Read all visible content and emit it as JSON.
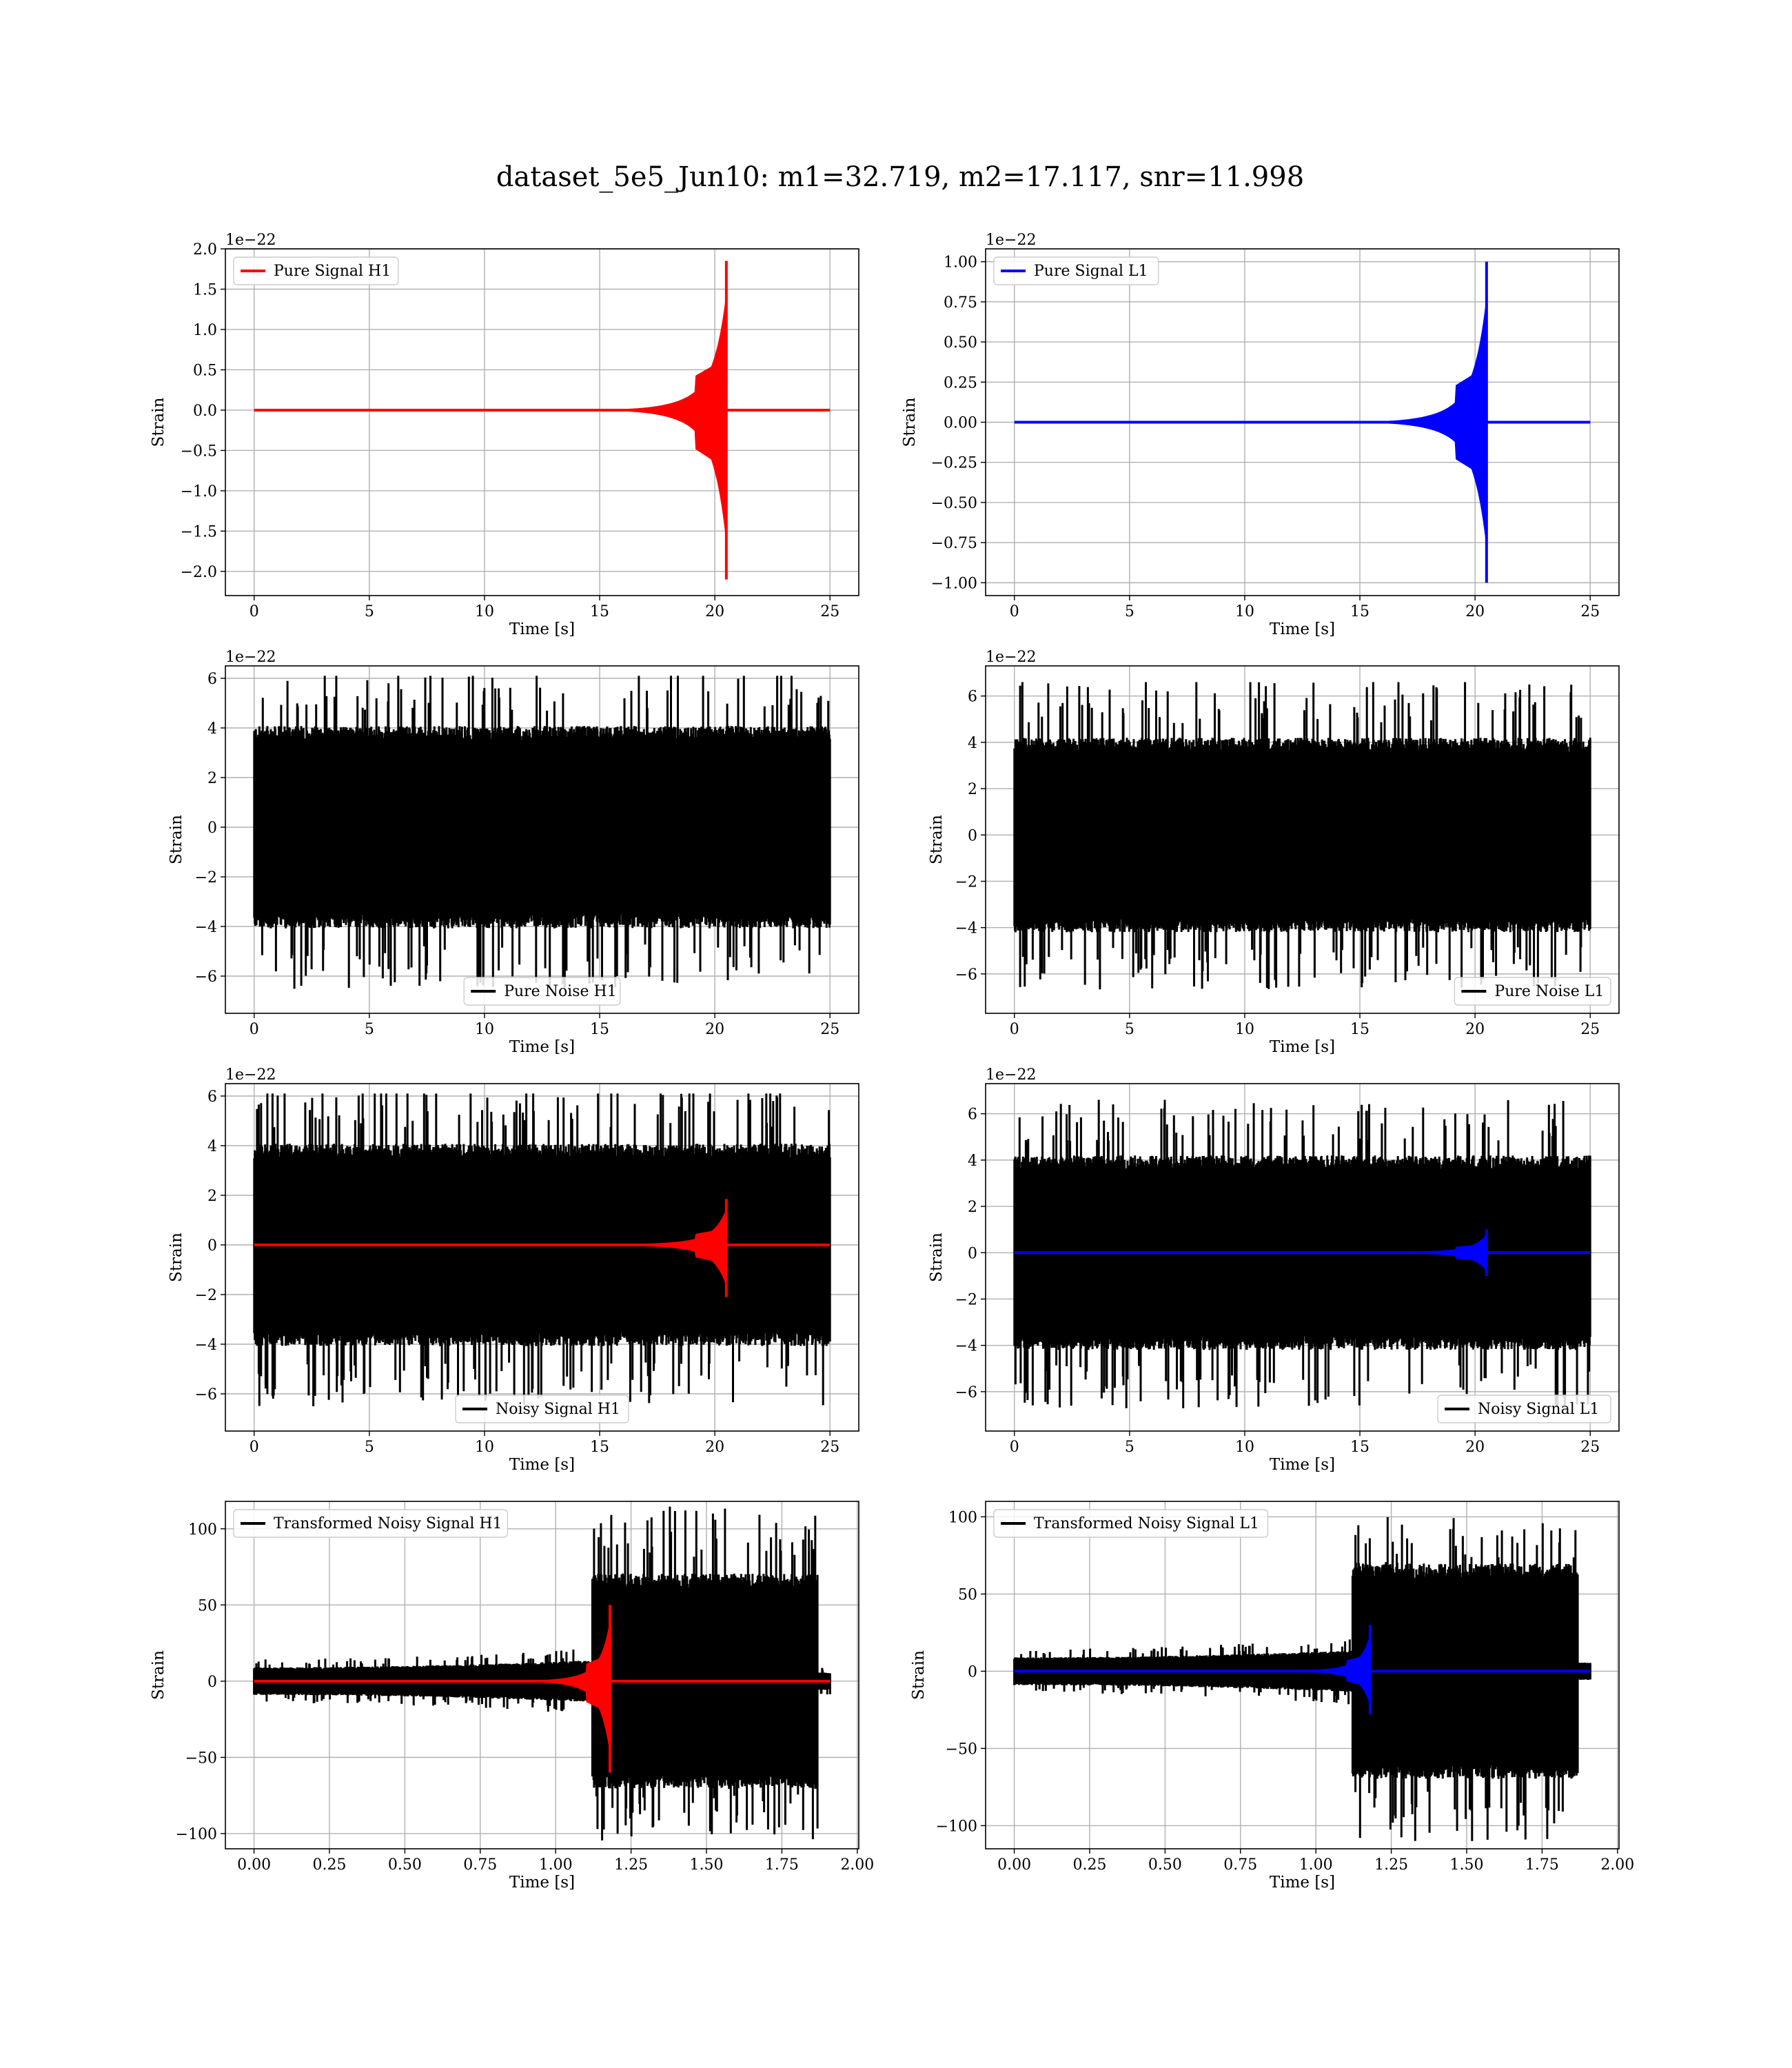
{
  "figure_title": "dataset_5e5_Jun10: m1=32.719, m2=17.117, snr=11.998",
  "colors": {
    "h1_signal": "#ff0000",
    "l1_signal": "#0000ff",
    "noise": "#000000",
    "grid": "#b0b0b0"
  },
  "chart_data": [
    {
      "id": "pure-signal-h1",
      "type": "line",
      "xlabel": "Time [s]",
      "ylabel": "Strain",
      "offset_text": "1e−22",
      "xlim": [
        -1.25,
        26.25
      ],
      "ylim": [
        -2.3,
        2.0
      ],
      "xticks": [
        0,
        5,
        10,
        15,
        20,
        25
      ],
      "xticklabels": [
        "0",
        "5",
        "10",
        "15",
        "20",
        "25"
      ],
      "yticks": [
        2.0,
        1.5,
        1.0,
        0.5,
        0.0,
        -0.5,
        -1.0,
        -1.5,
        -2.0
      ],
      "yticklabels": [
        "2.0",
        "1.5",
        "1.0",
        "0.5",
        "0.0",
        "−0.5",
        "−1.0",
        "−1.5",
        "−2.0"
      ],
      "legend_loc": "upper-left",
      "series": [
        {
          "name": "Pure Signal H1",
          "kind": "chirp",
          "color": "#ff0000",
          "x_start": 0,
          "x_end": 25,
          "merger": 20.5,
          "peak": 1.85,
          "trough": -2.1
        }
      ]
    },
    {
      "id": "pure-signal-l1",
      "type": "line",
      "xlabel": "Time [s]",
      "ylabel": "Strain",
      "offset_text": "1e−22",
      "xlim": [
        -1.25,
        26.25
      ],
      "ylim": [
        -1.08,
        1.08
      ],
      "xticks": [
        0,
        5,
        10,
        15,
        20,
        25
      ],
      "xticklabels": [
        "0",
        "5",
        "10",
        "15",
        "20",
        "25"
      ],
      "yticks": [
        1.0,
        0.75,
        0.5,
        0.25,
        0.0,
        -0.25,
        -0.5,
        -0.75,
        -1.0
      ],
      "yticklabels": [
        "1.00",
        "0.75",
        "0.50",
        "0.25",
        "0.00",
        "−0.25",
        "−0.50",
        "−0.75",
        "−1.00"
      ],
      "legend_loc": "upper-left",
      "series": [
        {
          "name": "Pure Signal L1",
          "kind": "chirp",
          "color": "#0000ff",
          "x_start": 0,
          "x_end": 25,
          "merger": 20.5,
          "peak": 1.0,
          "trough": -1.0
        }
      ]
    },
    {
      "id": "pure-noise-h1",
      "type": "line",
      "xlabel": "Time [s]",
      "ylabel": "Strain",
      "offset_text": "1e−22",
      "xlim": [
        -1.25,
        26.25
      ],
      "ylim": [
        -7.5,
        6.5
      ],
      "xticks": [
        0,
        5,
        10,
        15,
        20,
        25
      ],
      "xticklabels": [
        "0",
        "5",
        "10",
        "15",
        "20",
        "25"
      ],
      "yticks": [
        6,
        4,
        2,
        0,
        -2,
        -4,
        -6
      ],
      "yticklabels": [
        "6",
        "4",
        "2",
        "0",
        "−2",
        "−4",
        "−6"
      ],
      "legend_loc": "lower-center",
      "series": [
        {
          "name": "Pure Noise H1",
          "kind": "noise",
          "color": "#000000",
          "x_start": 0,
          "x_end": 25,
          "peak": 6.1,
          "trough": -6.8
        }
      ]
    },
    {
      "id": "pure-noise-l1",
      "type": "line",
      "xlabel": "Time [s]",
      "ylabel": "Strain",
      "offset_text": "1e−22",
      "xlim": [
        -1.25,
        26.25
      ],
      "ylim": [
        -7.7,
        7.3
      ],
      "xticks": [
        0,
        5,
        10,
        15,
        20,
        25
      ],
      "xticklabels": [
        "0",
        "5",
        "10",
        "15",
        "20",
        "25"
      ],
      "yticks": [
        6,
        4,
        2,
        0,
        -2,
        -4,
        -6
      ],
      "yticklabels": [
        "6",
        "4",
        "2",
        "0",
        "−2",
        "−4",
        "−6"
      ],
      "legend_loc": "lower-right",
      "series": [
        {
          "name": "Pure Noise L1",
          "kind": "noise",
          "color": "#000000",
          "x_start": 0,
          "x_end": 25,
          "peak": 6.6,
          "trough": -7.0
        }
      ]
    },
    {
      "id": "noisy-signal-h1",
      "type": "line",
      "xlabel": "Time [s]",
      "ylabel": "Strain",
      "offset_text": "1e−22",
      "xlim": [
        -1.25,
        26.25
      ],
      "ylim": [
        -7.5,
        6.5
      ],
      "xticks": [
        0,
        5,
        10,
        15,
        20,
        25
      ],
      "xticklabels": [
        "0",
        "5",
        "10",
        "15",
        "20",
        "25"
      ],
      "yticks": [
        6,
        4,
        2,
        0,
        -2,
        -4,
        -6
      ],
      "yticklabels": [
        "6",
        "4",
        "2",
        "0",
        "−2",
        "−4",
        "−6"
      ],
      "legend_loc": "lower-center",
      "series": [
        {
          "name": "Noisy Signal H1",
          "kind": "noise",
          "color": "#000000",
          "x_start": 0,
          "x_end": 25,
          "peak": 6.1,
          "trough": -6.8
        },
        {
          "kind": "chirp",
          "color": "#ff0000",
          "x_start": 0,
          "x_end": 25,
          "merger": 20.5,
          "peak": 1.85,
          "trough": -2.1
        }
      ]
    },
    {
      "id": "noisy-signal-l1",
      "type": "line",
      "xlabel": "Time [s]",
      "ylabel": "Strain",
      "offset_text": "1e−22",
      "xlim": [
        -1.25,
        26.25
      ],
      "ylim": [
        -7.7,
        7.3
      ],
      "xticks": [
        0,
        5,
        10,
        15,
        20,
        25
      ],
      "xticklabels": [
        "0",
        "5",
        "10",
        "15",
        "20",
        "25"
      ],
      "yticks": [
        6,
        4,
        2,
        0,
        -2,
        -4,
        -6
      ],
      "yticklabels": [
        "6",
        "4",
        "2",
        "0",
        "−2",
        "−4",
        "−6"
      ],
      "legend_loc": "lower-right",
      "series": [
        {
          "name": "Noisy Signal L1",
          "kind": "noise",
          "color": "#000000",
          "x_start": 0,
          "x_end": 25,
          "peak": 6.6,
          "trough": -7.0
        },
        {
          "kind": "chirp",
          "color": "#0000ff",
          "x_start": 0,
          "x_end": 25,
          "merger": 20.5,
          "peak": 1.0,
          "trough": -1.0
        }
      ]
    },
    {
      "id": "transformed-h1",
      "type": "line",
      "xlabel": "Time [s]",
      "ylabel": "Strain",
      "offset_text": "",
      "xlim": [
        -0.095,
        2.005
      ],
      "ylim": [
        -110,
        118
      ],
      "xticks": [
        0,
        0.25,
        0.5,
        0.75,
        1.0,
        1.25,
        1.5,
        1.75,
        2.0
      ],
      "xticklabels": [
        "0.00",
        "0.25",
        "0.50",
        "0.75",
        "1.00",
        "1.25",
        "1.50",
        "1.75",
        "2.00"
      ],
      "yticks": [
        100,
        50,
        0,
        -50,
        -100
      ],
      "yticklabels": [
        "100",
        "50",
        "0",
        "−50",
        "−100"
      ],
      "legend_loc": "upper-left",
      "series": [
        {
          "name": "Transformed Noisy Signal H1",
          "kind": "tnoise",
          "color": "#000000",
          "x_start": 0,
          "x_end": 1.91,
          "jump": 1.12,
          "drop": 1.87,
          "peak": 115,
          "trough": -105
        },
        {
          "kind": "chirp",
          "color": "#ff0000",
          "x_start": 0,
          "x_end": 1.91,
          "onset": 0.8,
          "merger": 1.18,
          "peak": 50,
          "trough": -60
        }
      ]
    },
    {
      "id": "transformed-l1",
      "type": "line",
      "xlabel": "Time [s]",
      "ylabel": "Strain",
      "offset_text": "",
      "xlim": [
        -0.095,
        2.005
      ],
      "ylim": [
        -115,
        110
      ],
      "xticks": [
        0,
        0.25,
        0.5,
        0.75,
        1.0,
        1.25,
        1.5,
        1.75,
        2.0
      ],
      "xticklabels": [
        "0.00",
        "0.25",
        "0.50",
        "0.75",
        "1.00",
        "1.25",
        "1.50",
        "1.75",
        "2.00"
      ],
      "yticks": [
        100,
        50,
        0,
        -50,
        -100
      ],
      "yticklabels": [
        "100",
        "50",
        "0",
        "−50",
        "−100"
      ],
      "legend_loc": "upper-left",
      "series": [
        {
          "name": "Transformed Noisy Signal L1",
          "kind": "tnoise",
          "color": "#000000",
          "x_start": 0,
          "x_end": 1.91,
          "jump": 1.12,
          "drop": 1.87,
          "peak": 100,
          "trough": -110
        },
        {
          "kind": "chirp",
          "color": "#0000ff",
          "x_start": 0,
          "x_end": 1.91,
          "onset": 0.8,
          "merger": 1.18,
          "peak": 30,
          "trough": -28
        }
      ]
    }
  ]
}
